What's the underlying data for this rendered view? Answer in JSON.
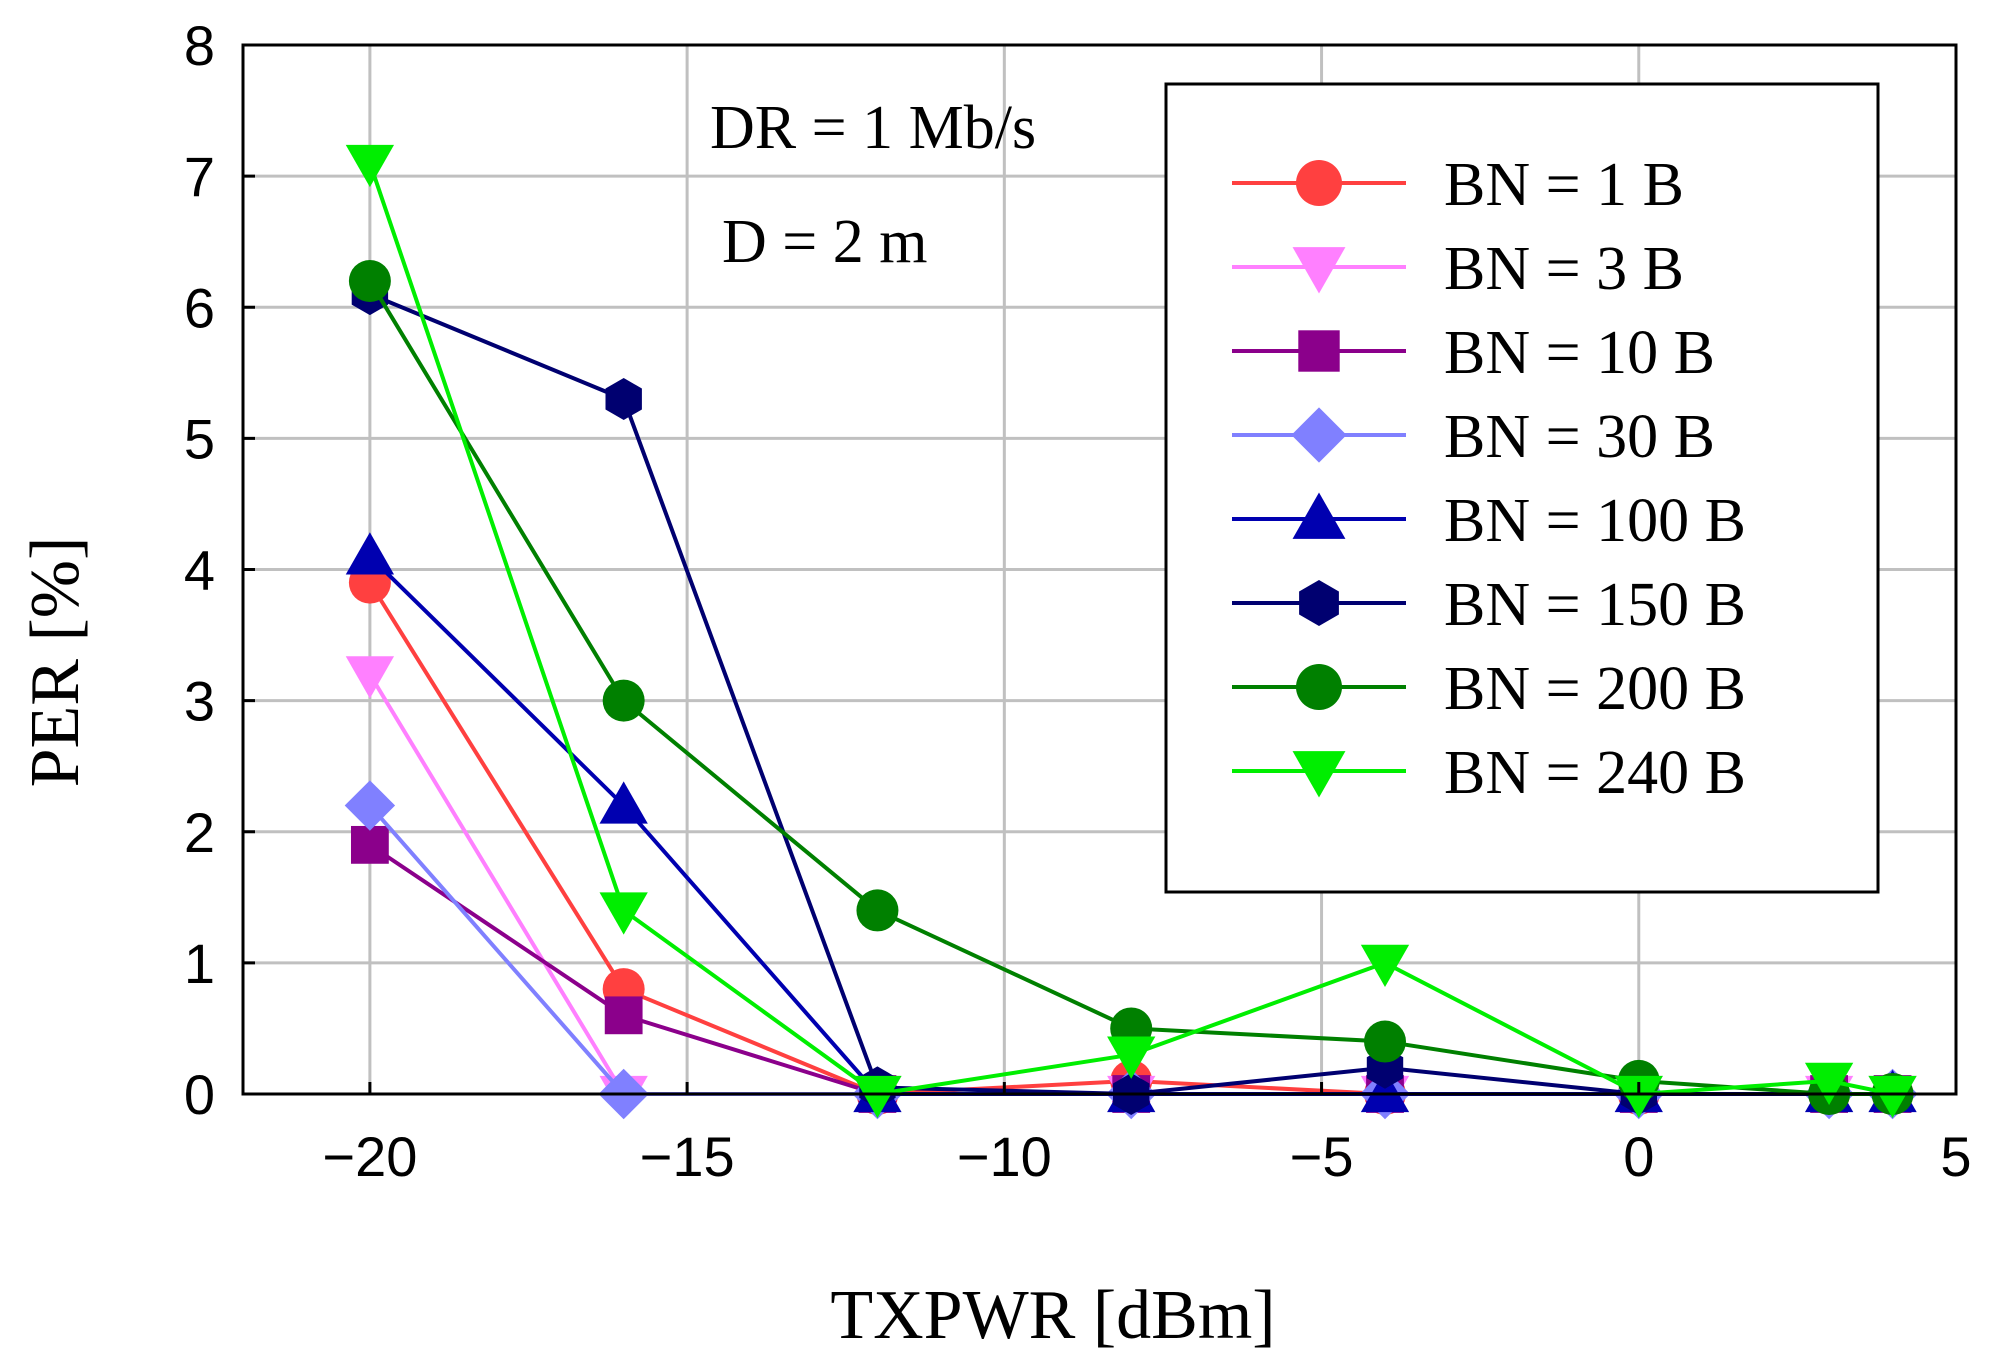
{
  "chart_data": {
    "type": "line",
    "title": "",
    "xlabel": "TXPWR [dBm]",
    "ylabel": "PER [%]",
    "xlim": [
      -22,
      5
    ],
    "ylim": [
      0,
      8
    ],
    "xticks": [
      -20,
      -15,
      -10,
      -5,
      0,
      5
    ],
    "yticks": [
      0,
      1,
      2,
      3,
      4,
      5,
      6,
      7,
      8
    ],
    "xtick_labels": [
      "−20",
      "−15",
      "−10",
      "−5",
      "0",
      "5"
    ],
    "ytick_labels": [
      "0",
      "1",
      "2",
      "3",
      "4",
      "5",
      "6",
      "7",
      "8"
    ],
    "grid": true,
    "legend_position": "top-right",
    "annotations": [
      "DR = 1 Mb/s",
      "D = 2 m"
    ],
    "x": [
      -20,
      -16,
      -12,
      -8,
      -4,
      0,
      3,
      4
    ],
    "series": [
      {
        "name": "BN = 1 B",
        "color": "#ff4040",
        "marker": "circle",
        "values": [
          3.9,
          0.8,
          0.0,
          0.1,
          0.0,
          0.0,
          0.0,
          0.0
        ]
      },
      {
        "name": "BN = 3 B",
        "color": "#ff80ff",
        "marker": "triangle-down",
        "values": [
          3.2,
          0.0,
          0.0,
          0.0,
          0.0,
          0.0,
          0.0,
          0.0
        ]
      },
      {
        "name": "BN = 10 B",
        "color": "#8b008b",
        "marker": "square",
        "values": [
          1.9,
          0.6,
          0.0,
          0.0,
          0.0,
          0.0,
          0.0,
          0.0
        ]
      },
      {
        "name": "BN = 30 B",
        "color": "#8080ff",
        "marker": "diamond",
        "values": [
          2.2,
          0.0,
          0.0,
          0.0,
          0.0,
          0.0,
          0.0,
          0.0
        ]
      },
      {
        "name": "BN = 100 B",
        "color": "#0000b0",
        "marker": "triangle-up",
        "values": [
          4.1,
          2.2,
          0.0,
          0.0,
          0.0,
          0.0,
          0.0,
          0.0
        ]
      },
      {
        "name": "BN = 150 B",
        "color": "#000070",
        "marker": "hexagon",
        "values": [
          6.1,
          5.3,
          0.05,
          0.0,
          0.2,
          0.0,
          0.0,
          0.0
        ]
      },
      {
        "name": "BN = 200 B",
        "color": "#008000",
        "marker": "circle",
        "values": [
          6.2,
          3.0,
          1.4,
          0.5,
          0.4,
          0.1,
          0.0,
          0.0
        ]
      },
      {
        "name": "BN = 240 B",
        "color": "#00ee00",
        "marker": "triangle-down",
        "values": [
          7.1,
          1.4,
          0.0,
          0.3,
          1.0,
          0.0,
          0.1,
          0.0
        ]
      }
    ]
  }
}
